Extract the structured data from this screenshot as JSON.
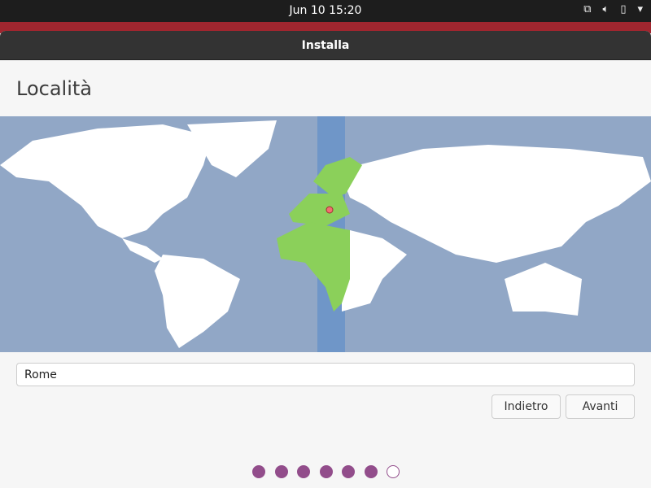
{
  "topbar": {
    "clock": "Jun 10  15:20",
    "icons": [
      "network-icon",
      "volume-icon",
      "battery-icon",
      "system-menu-arrow-icon"
    ]
  },
  "window": {
    "title": "Installa"
  },
  "page": {
    "title": "Località"
  },
  "map": {
    "selected_city": "Rome",
    "highlight_color": "#8bd05a",
    "ocean_color": "#91a7c6",
    "timezone_band_color": "#6f96c8"
  },
  "location_input": {
    "value": "Rome"
  },
  "buttons": {
    "back": "Indietro",
    "next": "Avanti"
  },
  "progress": {
    "total_steps": 7,
    "completed_steps": 6,
    "color": "#924d8b"
  }
}
